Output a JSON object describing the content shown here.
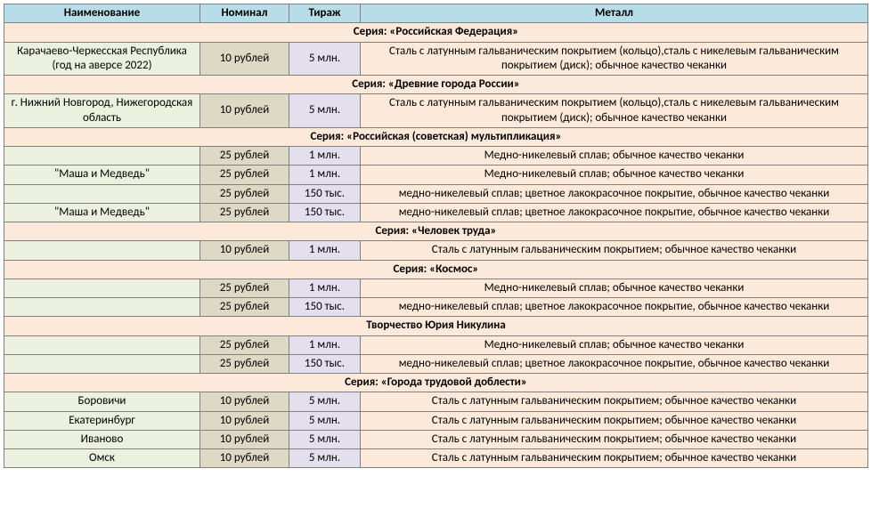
{
  "colors": {
    "header_bg": "#b7dde8",
    "series_bg": "#fde9d9",
    "name_bg": "#ebf1de",
    "nom_bg": "#ddd9c4",
    "tir_bg": "#e4dfec",
    "metal_bg": "#fde9d9",
    "border": "#808080"
  },
  "headers": {
    "name": "Наименование",
    "nom": "Номинал",
    "tir": "Тираж",
    "metal": "Металл"
  },
  "rows": [
    {
      "type": "series",
      "label": "Серия: «Российская Федерация»"
    },
    {
      "type": "data",
      "name": "Карачаево-Черкесская Республика (год на аверсе 2022)",
      "nom": "10 рублей",
      "tir": "5 млн.",
      "metal": "Сталь с латунным гальваническим покрытием (кольцо),сталь с никелевым гальваническим покрытием (диск); обычное качество чеканки"
    },
    {
      "type": "series",
      "label": "Серия: «Древние города России»"
    },
    {
      "type": "data",
      "name": "г. Нижний Новгород, Нижегородская область",
      "nom": "10 рублей",
      "tir": "5 млн.",
      "metal": "Сталь с латунным гальваническим покрытием (кольцо),сталь с никелевым гальваническим покрытием (диск); обычное качество чеканки"
    },
    {
      "type": "series",
      "label": "Серия: «Российская (советская) мультипликация»"
    },
    {
      "type": "data",
      "name": "",
      "nom": "25 рублей",
      "tir": "1 млн.",
      "metal": "Медно-никелевый сплав; обычное качество чеканки"
    },
    {
      "type": "data",
      "name": "\"Маша и Медведь\"",
      "nom": "25 рублей",
      "tir": "1 млн.",
      "metal": "Медно-никелевый сплав; обычное качество чеканки"
    },
    {
      "type": "data",
      "name": "",
      "nom": "25 рублей",
      "tir": "150 тыс.",
      "metal": "медно-никелевый сплав; цветное лакокрасочное покрытие, обычное качество чеканки"
    },
    {
      "type": "data",
      "name": "\"Маша и Медведь\"",
      "nom": "25 рублей",
      "tir": "150 тыс.",
      "metal": "медно-никелевый сплав; цветное лакокрасочное покрытие, обычное качество чеканки"
    },
    {
      "type": "series",
      "label": "Серия: «Человек труда»"
    },
    {
      "type": "data",
      "name": "",
      "nom": "10 рублей",
      "tir": "1 млн.",
      "metal": "Сталь с латунным гальваническим покрытием; обычное качество чеканки"
    },
    {
      "type": "series",
      "label": "Серия: «Космос»"
    },
    {
      "type": "data",
      "name": "",
      "nom": "25 рублей",
      "tir": "1 млн.",
      "metal": "Медно-никелевый сплав; обычное качество чеканки"
    },
    {
      "type": "data",
      "name": "",
      "nom": "25 рублей",
      "tir": "150 тыс.",
      "metal": "медно-никелевый сплав; цветное лакокрасочное покрытие, обычное качество чеканки"
    },
    {
      "type": "series",
      "label": "Творчество Юрия Никулина"
    },
    {
      "type": "data",
      "name": "",
      "nom": "25 рублей",
      "tir": "1 млн.",
      "metal": "Медно-никелевый сплав; обычное качество чеканки"
    },
    {
      "type": "data",
      "name": "",
      "nom": "25 рублей",
      "tir": "150 тыс.",
      "metal": "медно-никелевый сплав; цветное лакокрасочное покрытие, обычное качество чеканки"
    },
    {
      "type": "series",
      "label": "Серия: «Города трудовой доблести»"
    },
    {
      "type": "data",
      "name": "Боровичи",
      "nom": "10 рублей",
      "tir": "5 млн.",
      "metal": "Сталь с латунным гальваническим покрытием; обычное качество чеканки"
    },
    {
      "type": "data",
      "name": "Екатеринбург",
      "nom": "10 рублей",
      "tir": "5 млн.",
      "metal": "Сталь с латунным гальваническим покрытием; обычное качество чеканки"
    },
    {
      "type": "data",
      "name": "Иваново",
      "nom": "10 рублей",
      "tir": "5 млн.",
      "metal": "Сталь с латунным гальваническим покрытием; обычное качество чеканки"
    },
    {
      "type": "data",
      "name": "Омск",
      "nom": "10 рублей",
      "tir": "5 млн.",
      "metal": "Сталь с латунным гальваническим покрытием; обычное качество чеканки"
    }
  ]
}
